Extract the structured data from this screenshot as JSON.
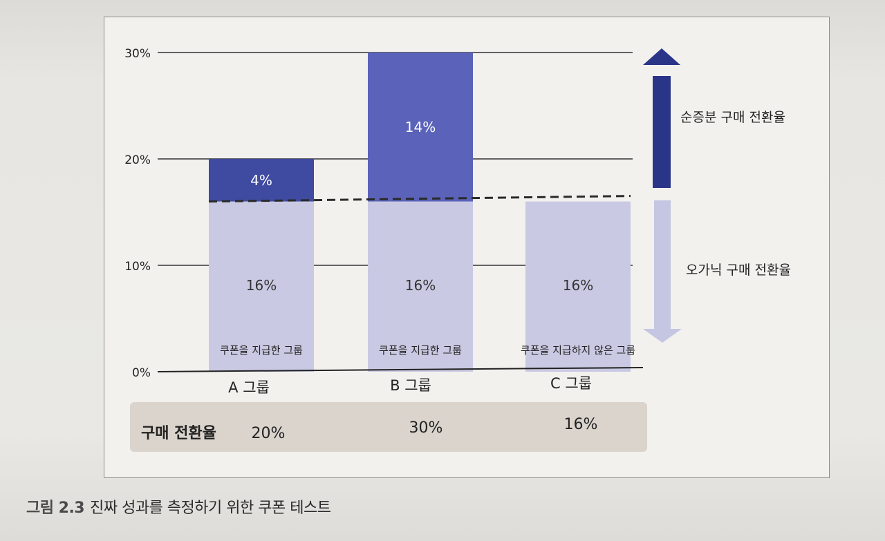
{
  "caption": {
    "figure_number": "그림 2.3",
    "text": "진짜 성과를 측정하기 위한 쿠폰 테스트"
  },
  "colors": {
    "organic": "#c9c9e3",
    "incremental_b": "#5a62b9",
    "incremental_a": "#3f4aa1",
    "arrow_up": "#2b3588",
    "arrow_down": "#c4c6e2",
    "summary_bg": "#dad4cd"
  },
  "legend": {
    "incremental": "순증분 구매 전환율",
    "organic": "오가닉 구매 전환율"
  },
  "summary_row": {
    "label": "구매 전환율",
    "values": [
      "20%",
      "30%",
      "16%"
    ]
  },
  "chart_data": {
    "type": "bar",
    "stacked": true,
    "categories": [
      "A 그룹",
      "B 그룹",
      "C 그룹"
    ],
    "bar_labels": [
      "쿠폰을 지급한 그룹",
      "쿠폰을 지급한 그룹",
      "쿠폰을 지급하지 않은 그룹"
    ],
    "series": [
      {
        "name": "오가닉 구매 전환율",
        "values": [
          16,
          16,
          16
        ],
        "labels": [
          "16%",
          "16%",
          "16%"
        ]
      },
      {
        "name": "순증분 구매 전환율",
        "values": [
          4,
          14,
          0
        ],
        "labels": [
          "4%",
          "14%",
          ""
        ]
      }
    ],
    "yticks": [
      0,
      10,
      20,
      30
    ],
    "ytick_labels": [
      "0%",
      "10%",
      "20%",
      "30%"
    ],
    "ylim": [
      0,
      30
    ],
    "baseline_value": 16,
    "grid": true
  }
}
